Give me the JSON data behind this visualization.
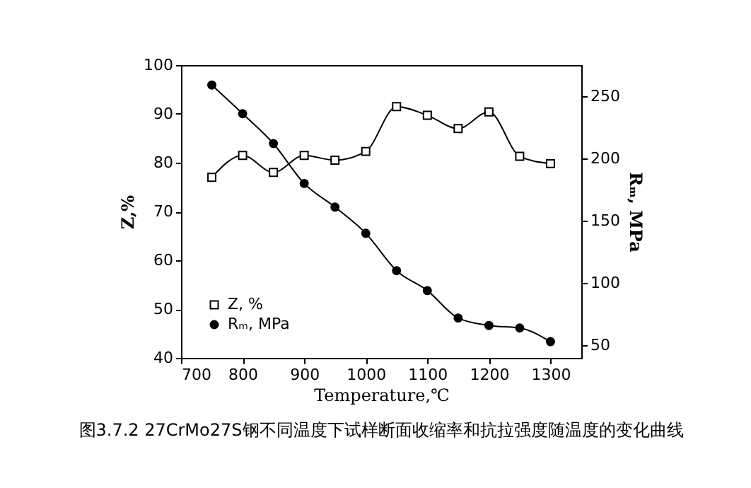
{
  "chart_data": {
    "type": "line",
    "title": "图3.7.2    27CrMo27S钢不同温度下试样断面收缩率和抗拉强度随温度的变化曲线",
    "xlabel": "Temperature,℃",
    "ylabel": "Z,%",
    "y2label": "Rₘ, MPa",
    "x": [
      750,
      800,
      850,
      900,
      950,
      1000,
      1050,
      1100,
      1150,
      1200,
      1250,
      1300
    ],
    "series": [
      {
        "name": "Z,  %",
        "color": "#000000",
        "marker": "square",
        "axis": "y",
        "values": [
          77,
          81.5,
          78,
          81.5,
          80.5,
          82.3,
          91.5,
          89.7,
          87,
          90.4,
          81.3,
          79.8
        ]
      },
      {
        "name": "Rₘ,  MPa",
        "color": "#000000",
        "marker": "circle",
        "axis": "y2",
        "values": [
          259,
          236,
          212,
          180,
          161,
          140,
          110,
          94,
          72,
          66,
          64,
          53
        ]
      }
    ],
    "xlim": [
      700,
      1350
    ],
    "xticks": [
      700,
      800,
      900,
      1000,
      1100,
      1200,
      1300
    ],
    "ylim": [
      40,
      100
    ],
    "yticks": [
      40,
      50,
      60,
      70,
      80,
      90,
      100
    ],
    "y2lim": [
      40,
      275
    ],
    "y2ticks": [
      50,
      100,
      150,
      200,
      250
    ],
    "grid": false,
    "legend": "bottom left",
    "line_style": "solid"
  }
}
